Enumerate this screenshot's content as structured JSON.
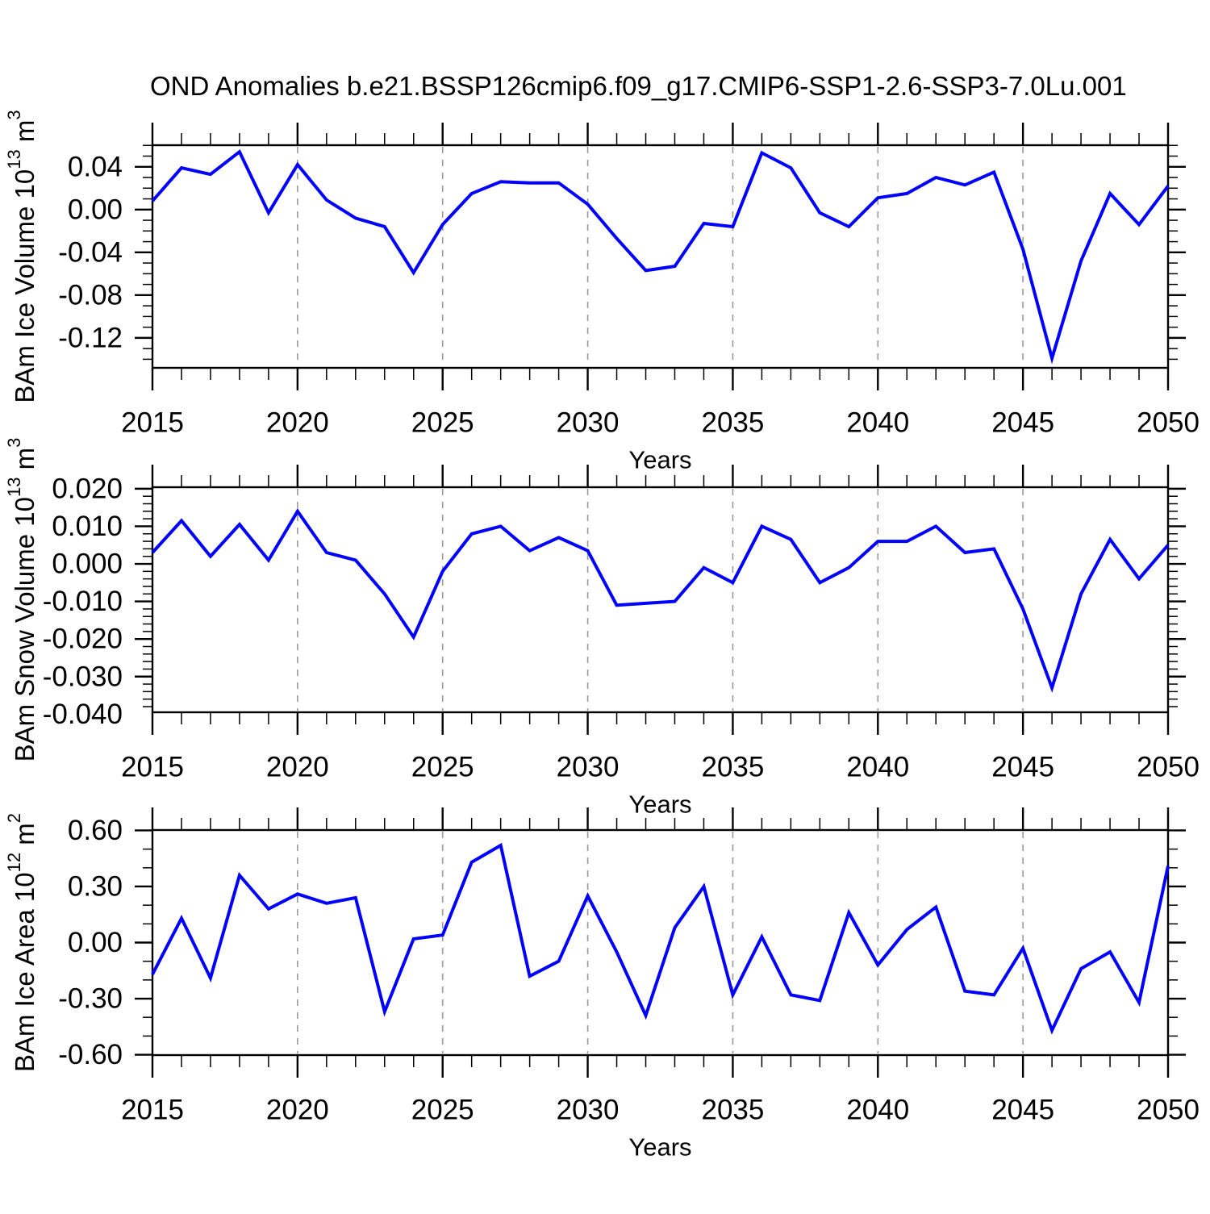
{
  "title": "OND Anomalies b.e21.BSSP126cmip6.f09_g17.CMIP6-SSP1-2.6-SSP3-7.0Lu.001",
  "style": {
    "line_color": "#0000ff",
    "grid_color": "#999999",
    "axis_color": "#000000"
  },
  "chart_data": [
    {
      "id": "ice-volume",
      "type": "line",
      "x": [
        2015,
        2016,
        2017,
        2018,
        2019,
        2020,
        2021,
        2022,
        2023,
        2024,
        2025,
        2026,
        2027,
        2028,
        2029,
        2030,
        2031,
        2032,
        2033,
        2034,
        2035,
        2036,
        2037,
        2038,
        2039,
        2040,
        2041,
        2042,
        2043,
        2044,
        2045,
        2046,
        2047,
        2048,
        2049,
        2050
      ],
      "xlabel": "Years",
      "xticks": [
        2015,
        2020,
        2025,
        2030,
        2035,
        2040,
        2045,
        2050
      ],
      "grid_x": [
        2020,
        2025,
        2030,
        2035,
        2040,
        2045
      ],
      "ylabel": "BAm Ice Volume 10^13 m^3",
      "ylabel_parts": [
        {
          "t": "BAm Ice Volume 10"
        },
        {
          "t": "13",
          "sup": true
        },
        {
          "t": " m"
        },
        {
          "t": "3",
          "sup": true
        }
      ],
      "ylim": [
        -0.148,
        0.0602
      ],
      "yticks": [
        0.04,
        0.0,
        -0.04,
        -0.08,
        -0.12
      ],
      "ytick_labels": [
        "0.04",
        "0.00",
        "-0.04",
        "-0.08",
        "-0.12"
      ],
      "yminor_step": 0.01,
      "series": [
        {
          "name": "BAm Ice Volume anomaly",
          "values": [
            0.008,
            0.039,
            0.033,
            0.054,
            -0.003,
            0.042,
            0.009,
            -0.008,
            -0.016,
            -0.059,
            -0.014,
            0.015,
            0.026,
            0.025,
            0.025,
            0.005,
            -0.027,
            -0.057,
            -0.053,
            -0.013,
            -0.016,
            0.053,
            0.039,
            -0.003,
            -0.016,
            0.011,
            0.015,
            0.03,
            0.023,
            0.035,
            -0.037,
            -0.139,
            -0.048,
            0.015,
            -0.014,
            0.022
          ]
        }
      ]
    },
    {
      "id": "snow-volume",
      "type": "line",
      "x": [
        2015,
        2016,
        2017,
        2018,
        2019,
        2020,
        2021,
        2022,
        2023,
        2024,
        2025,
        2026,
        2027,
        2028,
        2029,
        2030,
        2031,
        2032,
        2033,
        2034,
        2035,
        2036,
        2037,
        2038,
        2039,
        2040,
        2041,
        2042,
        2043,
        2044,
        2045,
        2046,
        2047,
        2048,
        2049,
        2050
      ],
      "xlabel": "Years",
      "xticks": [
        2015,
        2020,
        2025,
        2030,
        2035,
        2040,
        2045,
        2050
      ],
      "grid_x": [
        2020,
        2025,
        2030,
        2035,
        2040,
        2045
      ],
      "ylabel": "BAm Snow Volume 10^13 m^3",
      "ylabel_parts": [
        {
          "t": "BAm Snow Volume 10"
        },
        {
          "t": "13",
          "sup": true
        },
        {
          "t": " m"
        },
        {
          "t": "3",
          "sup": true
        }
      ],
      "ylim": [
        -0.0395,
        0.0204
      ],
      "yticks": [
        0.02,
        0.01,
        0.0,
        -0.01,
        -0.02,
        -0.03,
        -0.04
      ],
      "ytick_labels": [
        "0.020",
        "0.010",
        "0.000",
        "-0.010",
        "-0.020",
        "-0.030",
        "-0.040"
      ],
      "yminor_step": 0.002,
      "series": [
        {
          "name": "BAm Snow Volume anomaly",
          "values": [
            0.003,
            0.0115,
            0.002,
            0.0105,
            0.001,
            0.014,
            0.003,
            0.001,
            -0.008,
            -0.0195,
            -0.002,
            0.008,
            0.01,
            0.0035,
            0.007,
            0.0035,
            -0.011,
            -0.0105,
            -0.01,
            -0.001,
            -0.005,
            0.01,
            0.0065,
            -0.005,
            -0.001,
            0.006,
            0.006,
            0.01,
            0.003,
            0.004,
            -0.012,
            -0.033,
            -0.008,
            0.0065,
            -0.004,
            0.005
          ]
        }
      ]
    },
    {
      "id": "ice-area",
      "type": "line",
      "x": [
        2015,
        2016,
        2017,
        2018,
        2019,
        2020,
        2021,
        2022,
        2023,
        2024,
        2025,
        2026,
        2027,
        2028,
        2029,
        2030,
        2031,
        2032,
        2033,
        2034,
        2035,
        2036,
        2037,
        2038,
        2039,
        2040,
        2041,
        2042,
        2043,
        2044,
        2045,
        2046,
        2047,
        2048,
        2049,
        2050
      ],
      "xlabel": "Years",
      "xticks": [
        2015,
        2020,
        2025,
        2030,
        2035,
        2040,
        2045,
        2050
      ],
      "grid_x": [
        2020,
        2025,
        2030,
        2035,
        2040,
        2045
      ],
      "ylabel": "BAm Ice Area 10^12 m^2",
      "ylabel_parts": [
        {
          "t": "BAm Ice Area 10"
        },
        {
          "t": "12",
          "sup": true
        },
        {
          "t": " m"
        },
        {
          "t": "2",
          "sup": true
        }
      ],
      "ylim": [
        -0.602,
        0.602
      ],
      "yticks": [
        0.6,
        0.3,
        0.0,
        -0.3,
        -0.6
      ],
      "ytick_labels": [
        "0.60",
        "0.30",
        "0.00",
        "-0.30",
        "-0.60"
      ],
      "yminor_step": 0.1,
      "series": [
        {
          "name": "BAm Ice Area anomaly",
          "values": [
            -0.17,
            0.13,
            -0.19,
            0.36,
            0.18,
            0.26,
            0.21,
            0.24,
            -0.37,
            0.02,
            0.04,
            0.43,
            0.52,
            -0.18,
            -0.1,
            0.25,
            -0.05,
            -0.39,
            0.08,
            0.3,
            -0.28,
            0.03,
            -0.28,
            -0.31,
            0.16,
            -0.12,
            0.07,
            0.19,
            -0.26,
            -0.28,
            -0.03,
            -0.47,
            -0.14,
            -0.05,
            -0.32,
            0.41
          ]
        }
      ]
    }
  ]
}
